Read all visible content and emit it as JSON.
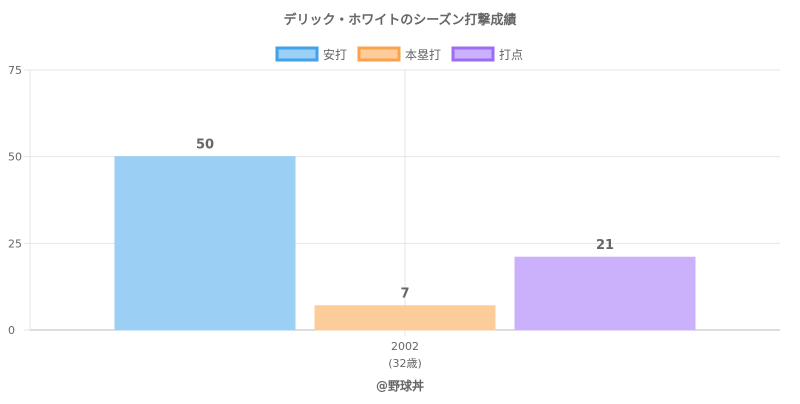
{
  "chart_data": {
    "type": "bar",
    "title": "デリック・ホワイトのシーズン打撃成績",
    "categories": [
      "2002"
    ],
    "category_sublabels": [
      "(32歳)"
    ],
    "series": [
      {
        "name": "安打",
        "values": [
          50
        ],
        "color": "#9bcff4",
        "border": "#3fa2ea"
      },
      {
        "name": "本塁打",
        "values": [
          7
        ],
        "color": "#fdcc9b",
        "border": "#f9a24b"
      },
      {
        "name": "打点",
        "values": [
          21
        ],
        "color": "#cbb1fc",
        "border": "#9c6cf5"
      }
    ],
    "ylim": [
      0,
      75
    ],
    "yticks": [
      0,
      25,
      50,
      75
    ],
    "grid": true,
    "legend_position": "top",
    "footer": "@野球丼"
  }
}
